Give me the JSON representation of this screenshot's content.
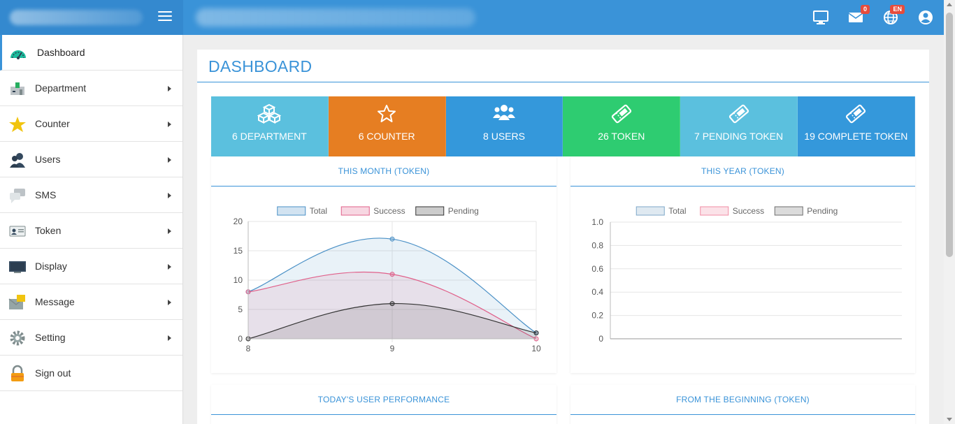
{
  "header": {
    "icons": [
      "monitor-icon",
      "mail-icon",
      "globe-icon",
      "user-circle-icon"
    ],
    "mail_badge": "0",
    "lang_badge": "EN"
  },
  "sidebar": {
    "items": [
      {
        "label": "Dashboard",
        "icon": "speedometer-icon"
      },
      {
        "label": "Department",
        "icon": "building-icon"
      },
      {
        "label": "Counter",
        "icon": "star-icon"
      },
      {
        "label": "Users",
        "icon": "users-icon"
      },
      {
        "label": "SMS",
        "icon": "chat-icon"
      },
      {
        "label": "Token",
        "icon": "id-card-icon"
      },
      {
        "label": "Display",
        "icon": "display-icon"
      },
      {
        "label": "Message",
        "icon": "envelope-icon"
      },
      {
        "label": "Setting",
        "icon": "gear-icon"
      },
      {
        "label": "Sign out",
        "icon": "lock-icon"
      }
    ]
  },
  "page": {
    "title": "DASHBOARD"
  },
  "stats": [
    {
      "label": "6 DEPARTMENT",
      "color": "#5bc0de",
      "icon": "cubes-icon"
    },
    {
      "label": "6 COUNTER",
      "color": "#e67e22",
      "icon": "star-outline-icon"
    },
    {
      "label": "8 USERS",
      "color": "#3498db",
      "icon": "users-icon"
    },
    {
      "label": "26 TOKEN",
      "color": "#2ecc71",
      "icon": "ticket-icon"
    },
    {
      "label": "7 PENDING TOKEN",
      "color": "#5bc0de",
      "icon": "ticket-icon"
    },
    {
      "label": "19 COMPLETE TOKEN",
      "color": "#3498db",
      "icon": "ticket-icon"
    }
  ],
  "cards": {
    "month_title": "THIS MONTH (TOKEN)",
    "year_title": "THIS YEAR (TOKEN)",
    "performance_title": "TODAY'S USER PERFORMANCE",
    "beginning_title": "FROM THE BEGINNING (TOKEN)"
  },
  "chart_data": [
    {
      "type": "area",
      "title": "THIS MONTH (TOKEN)",
      "x": [
        8,
        9,
        10
      ],
      "series": [
        {
          "name": "Total",
          "values": [
            8,
            17,
            1
          ],
          "color": "#4a90c6"
        },
        {
          "name": "Success",
          "values": [
            8,
            11,
            0
          ],
          "color": "#e0608a"
        },
        {
          "name": "Pending",
          "values": [
            0,
            6,
            1
          ],
          "color": "#333333"
        }
      ],
      "ylim": [
        0,
        20
      ],
      "yticks": [
        0,
        5,
        10,
        15,
        20
      ],
      "legend": "top",
      "grid": true
    },
    {
      "type": "line",
      "title": "THIS YEAR (TOKEN)",
      "series": [
        {
          "name": "Total",
          "values": [],
          "color": "#7fa8c9"
        },
        {
          "name": "Success",
          "values": [],
          "color": "#f08ca4"
        },
        {
          "name": "Pending",
          "values": [],
          "color": "#6e6e6e"
        }
      ],
      "ylim": [
        0,
        1
      ],
      "yticks": [
        "0",
        "0.2",
        "0.4",
        "0.6",
        "0.8",
        "1.0"
      ],
      "legend": "top",
      "grid": true
    }
  ]
}
